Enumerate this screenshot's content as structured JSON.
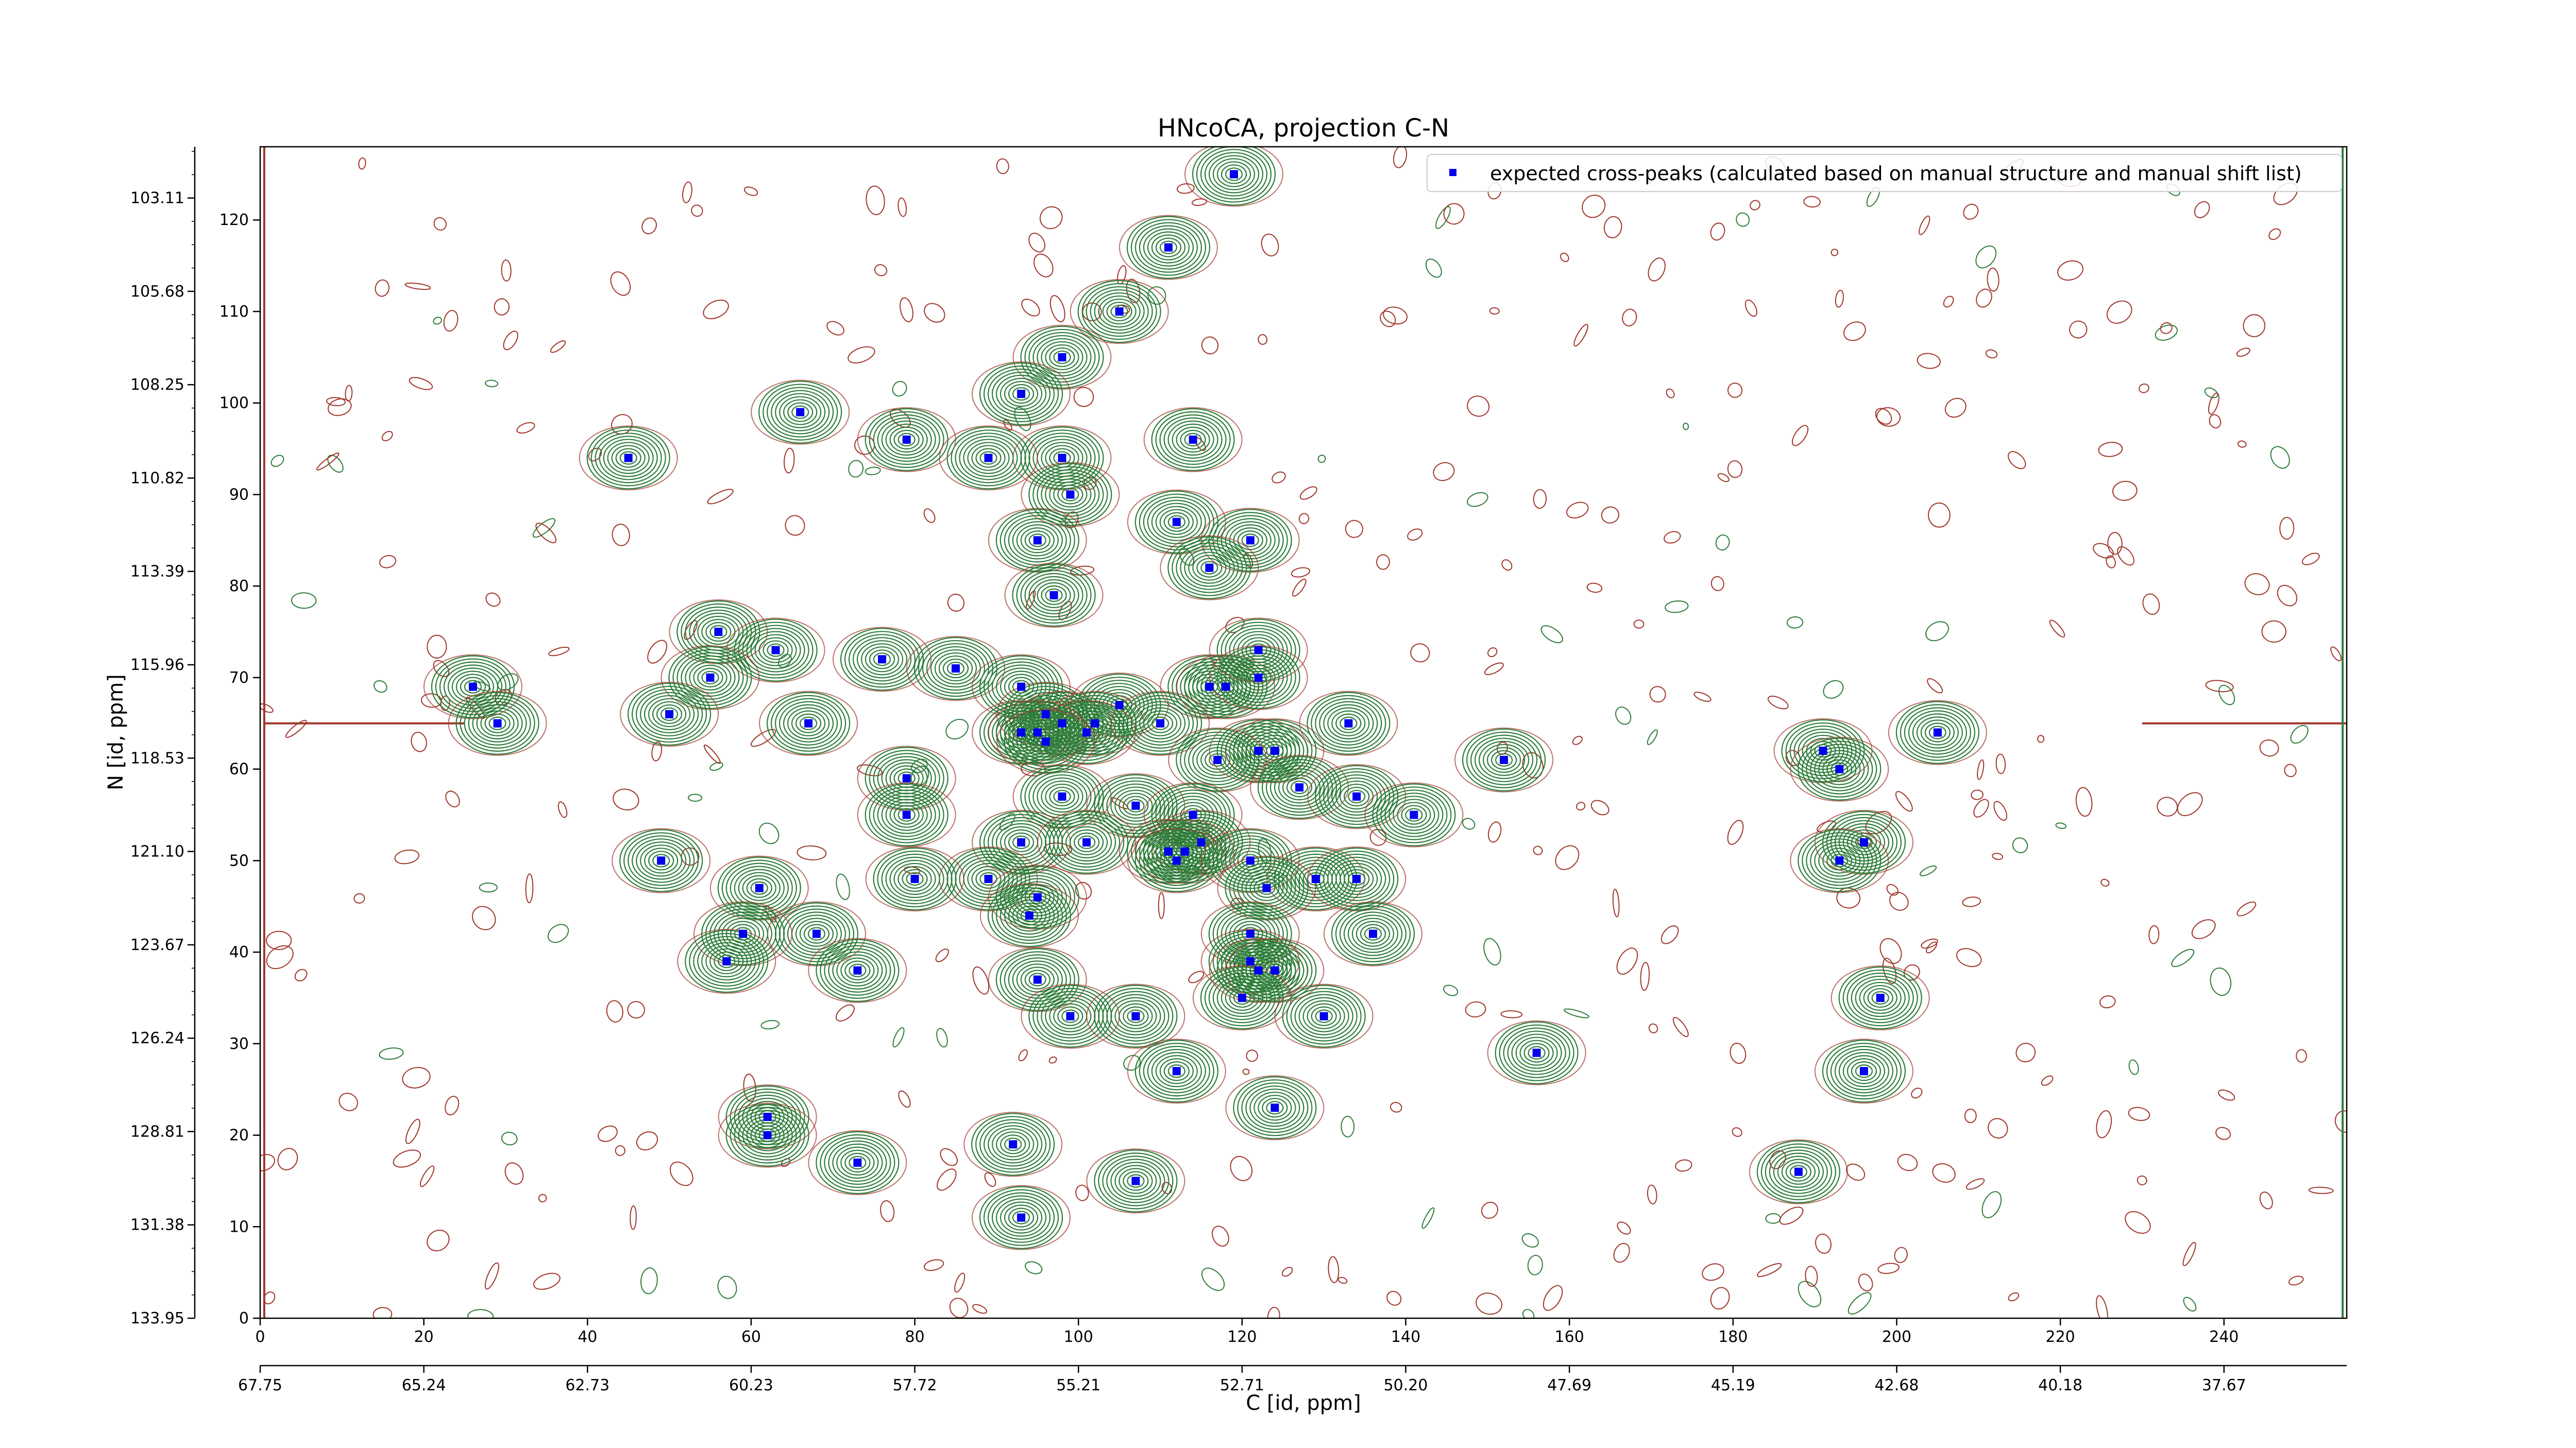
{
  "chart_data": {
    "type": "scatter",
    "title": "HNcoCA, projection C-N",
    "xlabel": "C [id, ppm]",
    "ylabel": "N [id, ppm]",
    "xlim": [
      0,
      255
    ],
    "ylim": [
      0,
      128
    ],
    "bottom_ticks": [
      0,
      20,
      40,
      60,
      80,
      100,
      120,
      140,
      160,
      180,
      200,
      220,
      240
    ],
    "left_ticks": [
      0,
      10,
      20,
      30,
      40,
      50,
      60,
      70,
      80,
      90,
      100,
      110,
      120
    ],
    "ppm_x_ticks": [
      {
        "at": 0,
        "label": "67.75"
      },
      {
        "at": 20,
        "label": "65.24"
      },
      {
        "at": 40,
        "label": "62.73"
      },
      {
        "at": 60,
        "label": "60.23"
      },
      {
        "at": 80,
        "label": "57.72"
      },
      {
        "at": 100,
        "label": "55.21"
      },
      {
        "at": 120,
        "label": "52.71"
      },
      {
        "at": 140,
        "label": "50.20"
      },
      {
        "at": 160,
        "label": "47.69"
      },
      {
        "at": 180,
        "label": "45.19"
      },
      {
        "at": 200,
        "label": "42.68"
      },
      {
        "at": 220,
        "label": "40.18"
      },
      {
        "at": 240,
        "label": "37.67"
      }
    ],
    "ppm_y_ticks": [
      {
        "at": 0,
        "label": "133.95"
      },
      {
        "at": 10.2,
        "label": "131.38"
      },
      {
        "at": 20.4,
        "label": "128.81"
      },
      {
        "at": 30.6,
        "label": "126.24"
      },
      {
        "at": 40.8,
        "label": "123.67"
      },
      {
        "at": 51.0,
        "label": "121.10"
      },
      {
        "at": 61.2,
        "label": "118.53"
      },
      {
        "at": 71.4,
        "label": "115.96"
      },
      {
        "at": 81.6,
        "label": "113.39"
      },
      {
        "at": 91.8,
        "label": "110.82"
      },
      {
        "at": 102.0,
        "label": "108.25"
      },
      {
        "at": 112.2,
        "label": "105.68"
      },
      {
        "at": 122.4,
        "label": "103.11"
      }
    ],
    "legend": {
      "label": "expected cross-peaks (calculated based on manual structure and manual shift list)",
      "loc": "upper right"
    },
    "colors": {
      "marker": "#0000ee",
      "positive_contour": "#2e7d3a",
      "negative_contour": "#a0372c"
    },
    "series": [
      {
        "name": "expected cross-peaks (calculated based on manual structure and manual shift list)",
        "points": [
          [
            119,
            125
          ],
          [
            111,
            117
          ],
          [
            105,
            110
          ],
          [
            98,
            105
          ],
          [
            93,
            101
          ],
          [
            66,
            99
          ],
          [
            45,
            94
          ],
          [
            79,
            96
          ],
          [
            98,
            94
          ],
          [
            89,
            94
          ],
          [
            114,
            96
          ],
          [
            99,
            90
          ],
          [
            112,
            87
          ],
          [
            95,
            85
          ],
          [
            121,
            85
          ],
          [
            116,
            82
          ],
          [
            97,
            79
          ],
          [
            56,
            75
          ],
          [
            63,
            73
          ],
          [
            76,
            72
          ],
          [
            85,
            71
          ],
          [
            55,
            70
          ],
          [
            26,
            69
          ],
          [
            93,
            69
          ],
          [
            116,
            69
          ],
          [
            118,
            69
          ],
          [
            122,
            73
          ],
          [
            122,
            70
          ],
          [
            50,
            66
          ],
          [
            96,
            66
          ],
          [
            98,
            65
          ],
          [
            105,
            67
          ],
          [
            102,
            65
          ],
          [
            101,
            64
          ],
          [
            93,
            64
          ],
          [
            95,
            64
          ],
          [
            96,
            63
          ],
          [
            110,
            65
          ],
          [
            133,
            65
          ],
          [
            29,
            65
          ],
          [
            67,
            65
          ],
          [
            122,
            62
          ],
          [
            124,
            62
          ],
          [
            117,
            61
          ],
          [
            152,
            61
          ],
          [
            191,
            62
          ],
          [
            193,
            60
          ],
          [
            205,
            64
          ],
          [
            79,
            59
          ],
          [
            127,
            58
          ],
          [
            98,
            57
          ],
          [
            134,
            57
          ],
          [
            107,
            56
          ],
          [
            79,
            55
          ],
          [
            114,
            55
          ],
          [
            141,
            55
          ],
          [
            93,
            52
          ],
          [
            115,
            52
          ],
          [
            101,
            52
          ],
          [
            196,
            52
          ],
          [
            111,
            51
          ],
          [
            113,
            51
          ],
          [
            112,
            50
          ],
          [
            121,
            50
          ],
          [
            193,
            50
          ],
          [
            49,
            50
          ],
          [
            89,
            48
          ],
          [
            80,
            48
          ],
          [
            129,
            48
          ],
          [
            134,
            48
          ],
          [
            123,
            47
          ],
          [
            61,
            47
          ],
          [
            95,
            46
          ],
          [
            94,
            44
          ],
          [
            121,
            42
          ],
          [
            68,
            42
          ],
          [
            59,
            42
          ],
          [
            136,
            42
          ],
          [
            57,
            39
          ],
          [
            121,
            39
          ],
          [
            122,
            38
          ],
          [
            124,
            38
          ],
          [
            73,
            38
          ],
          [
            95,
            37
          ],
          [
            120,
            35
          ],
          [
            198,
            35
          ],
          [
            99,
            33
          ],
          [
            107,
            33
          ],
          [
            130,
            33
          ],
          [
            156,
            29
          ],
          [
            112,
            27
          ],
          [
            196,
            27
          ],
          [
            62,
            22
          ],
          [
            124,
            23
          ],
          [
            62,
            20
          ],
          [
            92,
            19
          ],
          [
            73,
            17
          ],
          [
            107,
            15
          ],
          [
            188,
            16
          ],
          [
            93,
            11
          ]
        ]
      }
    ]
  }
}
